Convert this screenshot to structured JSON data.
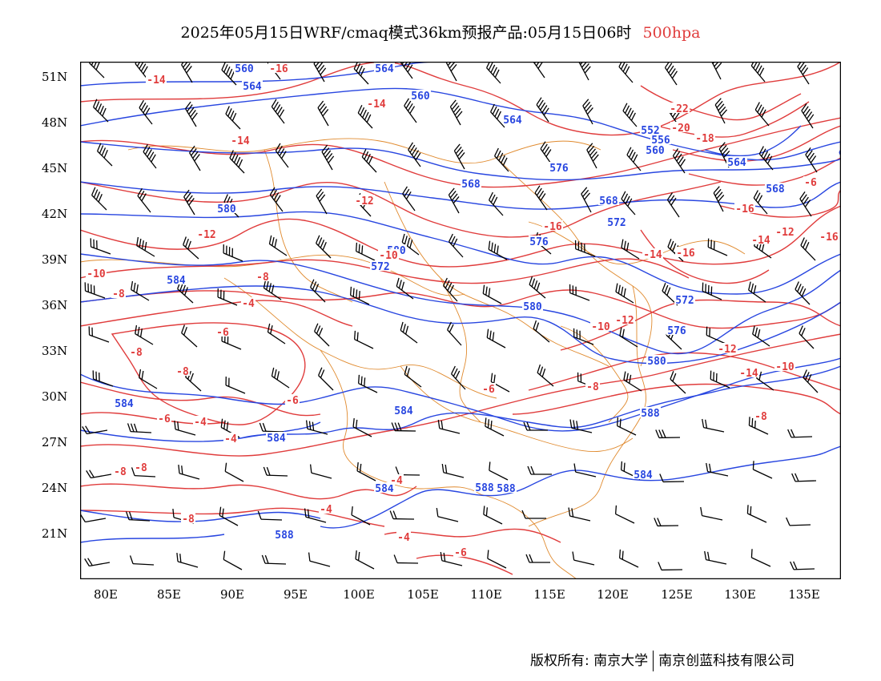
{
  "title": {
    "main": "2025年05月15日WRF/cmaq模式36km预报产品:05月15日06时",
    "level": "500hpa"
  },
  "axes": {
    "lat_labels": [
      "51N",
      "48N",
      "45N",
      "42N",
      "39N",
      "36N",
      "33N",
      "30N",
      "27N",
      "24N",
      "21N"
    ],
    "lon_labels": [
      "80E",
      "85E",
      "90E",
      "95E",
      "100E",
      "105E",
      "110E",
      "115E",
      "120E",
      "125E",
      "130E",
      "135E"
    ],
    "lon_range": [
      78,
      138
    ],
    "lat_range": [
      18,
      52
    ]
  },
  "colors": {
    "height_contour": "#2846e0",
    "temperature_contour": "#e03c3c",
    "boundary": "#e08a2e",
    "wind_barb": "#000000",
    "level_text": "#e03c3c"
  },
  "height_labels": [
    "560",
    "564",
    "564",
    "560",
    "568",
    "564",
    "572",
    "576",
    "568",
    "552",
    "556",
    "560",
    "564",
    "572",
    "568",
    "580",
    "580",
    "576",
    "584",
    "580",
    "572",
    "576",
    "580",
    "584",
    "584",
    "584",
    "588",
    "588",
    "588",
    "588",
    "584",
    "584"
  ],
  "temperature_labels": [
    "-14",
    "-16",
    "-14",
    "-14",
    "-12",
    "-12",
    "-10",
    "-10",
    "-8",
    "-8",
    "-4",
    "-6",
    "-8",
    "-8",
    "-6",
    "-4",
    "-6",
    "-8",
    "-8",
    "-4",
    "-4",
    "-4",
    "-4",
    "-6",
    "-8",
    "-8",
    "-10",
    "-12",
    "-12",
    "-14",
    "-14",
    "-16",
    "-16",
    "-14",
    "-12",
    "-10",
    "-8",
    "-6",
    "-16",
    "-18",
    "-20",
    "-22",
    "-16",
    "-6"
  ],
  "footer": {
    "copyright": "版权所有: 南京大学",
    "company": "南京创蓝科技有限公司"
  }
}
